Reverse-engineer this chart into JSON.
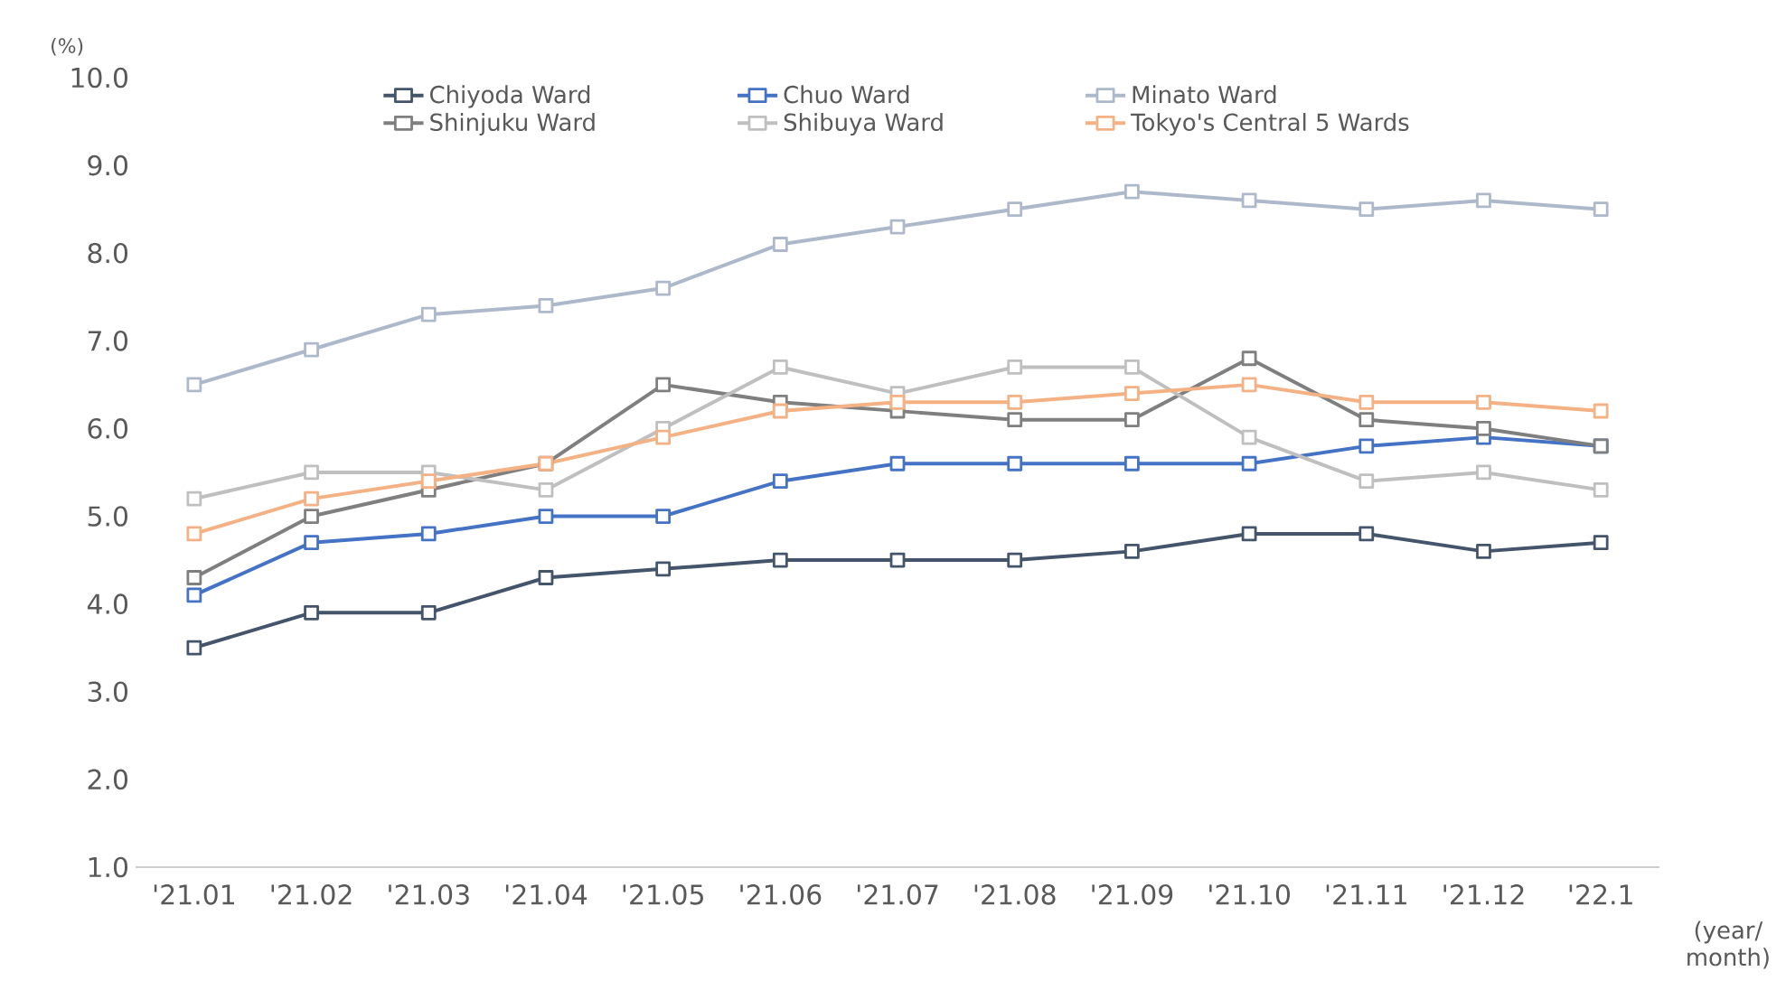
{
  "chart_data": {
    "type": "line",
    "ylabel": "(%)",
    "xlabel": "(year/ month)",
    "categories": [
      "'21.01",
      "'21.02",
      "'21.03",
      "'21.04",
      "'21.05",
      "'21.06",
      "'21.07",
      "'21.08",
      "'21.09",
      "'21.10",
      "'21.11",
      "'21.12",
      "'22.1"
    ],
    "ylim": [
      1,
      10
    ],
    "yticks": [
      {
        "value": 1,
        "label": "1.0"
      },
      {
        "value": 2,
        "label": "2.0"
      },
      {
        "value": 3,
        "label": "3.0"
      },
      {
        "value": 4,
        "label": "4.0"
      },
      {
        "value": 5,
        "label": "5.0"
      },
      {
        "value": 6,
        "label": "6.0"
      },
      {
        "value": 7,
        "label": "7.0"
      },
      {
        "value": 8,
        "label": "8.0"
      },
      {
        "value": 9,
        "label": "9.0"
      },
      {
        "value": 10,
        "label": "10.0"
      }
    ],
    "marker": "square",
    "legend": "top",
    "grid": false,
    "series": [
      {
        "name": "Chiyoda Ward",
        "color": "#44546a",
        "values": [
          3.5,
          3.9,
          3.9,
          4.3,
          4.4,
          4.5,
          4.5,
          4.5,
          4.6,
          4.8,
          4.8,
          4.6,
          4.7
        ]
      },
      {
        "name": "Chuo Ward",
        "color": "#4472c4",
        "values": [
          4.1,
          4.7,
          4.8,
          5.0,
          5.0,
          5.4,
          5.6,
          5.6,
          5.6,
          5.6,
          5.8,
          5.9,
          5.8
        ]
      },
      {
        "name": "Minato Ward",
        "color": "#adb9ca",
        "values": [
          6.5,
          6.9,
          7.3,
          7.4,
          7.6,
          8.1,
          8.3,
          8.5,
          8.7,
          8.6,
          8.5,
          8.6,
          8.5
        ]
      },
      {
        "name": "Shinjuku Ward",
        "color": "#7f7f7f",
        "values": [
          4.3,
          5.0,
          5.3,
          5.6,
          6.5,
          6.3,
          6.2,
          6.1,
          6.1,
          6.8,
          6.1,
          6.0,
          5.8
        ]
      },
      {
        "name": "Shibuya Ward",
        "color": "#bfbfbf",
        "values": [
          5.2,
          5.5,
          5.5,
          5.3,
          6.0,
          6.7,
          6.4,
          6.7,
          6.7,
          5.9,
          5.4,
          5.5,
          5.3
        ]
      },
      {
        "name": "Tokyo's Central 5 Wards",
        "color": "#f4b183",
        "values": [
          4.8,
          5.2,
          5.4,
          5.6,
          5.9,
          6.2,
          6.3,
          6.3,
          6.4,
          6.5,
          6.3,
          6.3,
          6.2
        ]
      }
    ]
  }
}
